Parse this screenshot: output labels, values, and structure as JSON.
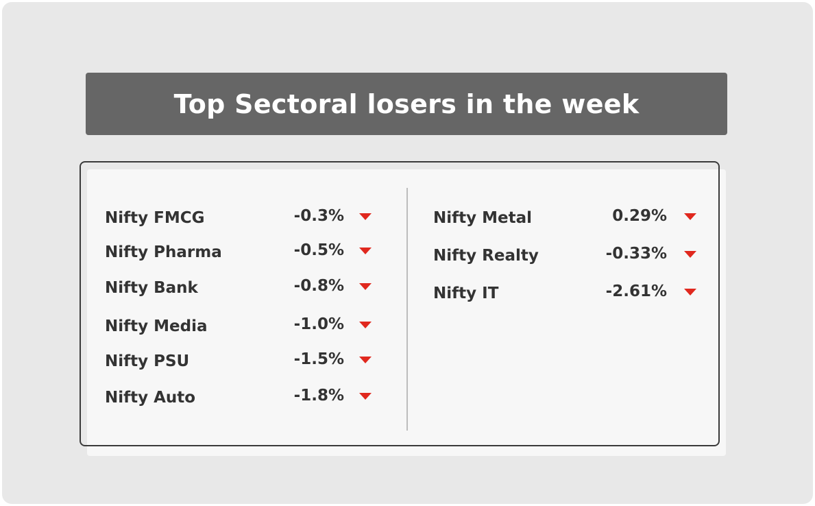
{
  "title": "Top Sectoral losers in the week",
  "left": {
    "rows": [
      [
        "Nifty FMCG",
        "-0.3%"
      ],
      [
        "Nifty Pharma",
        "-0.5%"
      ],
      [
        "Nifty Bank",
        "-0.8%"
      ],
      [
        "Nifty Media",
        "-1.0%"
      ],
      [
        "Nifty PSU",
        "-1.5%"
      ],
      [
        "Nifty Auto",
        "-1.8%"
      ]
    ]
  },
  "right": {
    "rows": [
      [
        "Nifty Metal",
        "0.29%"
      ],
      [
        "Nifty Realty",
        "-0.33%"
      ],
      [
        "Nifty IT",
        "-2.61%"
      ]
    ]
  }
}
